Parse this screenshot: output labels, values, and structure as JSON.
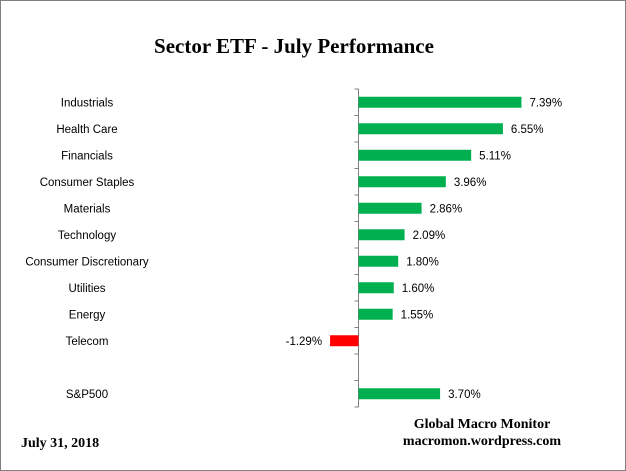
{
  "chart_data": {
    "type": "bar",
    "orientation": "horizontal",
    "title": "Sector ETF - July Performance",
    "categories": [
      "Industrials",
      "Health Care",
      "Financials",
      "Consumer Staples",
      "Materials",
      "Technology",
      "Consumer Discretionary",
      "Utilities",
      "Energy",
      "Telecom",
      "",
      "S&P500"
    ],
    "values": [
      7.39,
      6.55,
      5.11,
      3.96,
      2.86,
      2.09,
      1.8,
      1.6,
      1.55,
      -1.29,
      null,
      3.7
    ],
    "data_labels": [
      "7.39%",
      "6.55%",
      "5.11%",
      "3.96%",
      "2.86%",
      "2.09%",
      "1.80%",
      "1.60%",
      "1.55%",
      "-1.29%",
      "",
      "3.70%"
    ],
    "colors": {
      "positive": "#00B050",
      "negative": "#FF0000",
      "axis": "#808080"
    },
    "grid": false,
    "legend": "none",
    "value_axis_visible": false
  },
  "footer": {
    "date": "July 31,  2018",
    "source_line1": "Global Macro Monitor",
    "source_line2": "macromon.wordpress.com"
  }
}
